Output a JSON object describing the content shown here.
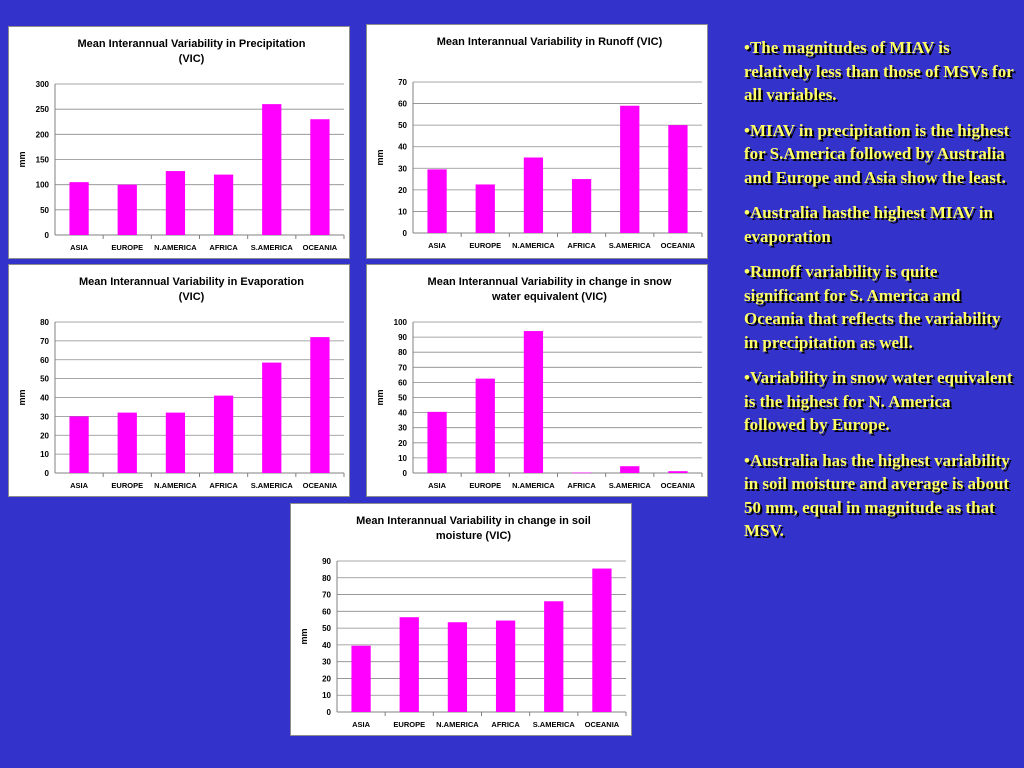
{
  "colors": {
    "background": "#3333cc",
    "bar": "#ff00ff",
    "bullet_text": "#ffff66"
  },
  "notes": [
    "•The magnitudes of MIAV is relatively less than those of MSVs for all variables.",
    "•MIAV in precipitation is the highest for S.America followed by Australia and Europe and Asia show the least.",
    "•Australia hasthe  highest MIAV in evaporation",
    "•Runoff variability is quite significant for S. America and Oceania that reflects the variability in precipitation as well.",
    "•Variability in snow water equivalent is the highest for N. America followed by Europe.",
    "•Australia has the highest variability in soil moisture and average is about 50 mm, equal in magnitude as that MSV."
  ],
  "chart_data": [
    {
      "type": "bar",
      "title_lines": [
        "Mean Interannual Variability in Precipitation",
        "(VIC)"
      ],
      "ylabel": "mm",
      "categories": [
        "ASIA",
        "EUROPE",
        "N.AMERICA",
        "AFRICA",
        "S.AMERICA",
        "OCEANIA"
      ],
      "values": [
        105,
        100,
        127,
        120,
        260,
        230
      ],
      "ylim": [
        0,
        300
      ],
      "yticks": [
        0,
        50,
        100,
        150,
        200,
        250,
        300
      ],
      "grid": true,
      "legend": false
    },
    {
      "type": "bar",
      "title_lines": [
        "Mean Interannual Variability in Runoff (VIC)"
      ],
      "ylabel": "mm",
      "categories": [
        "ASIA",
        "EUROPE",
        "N.AMERICA",
        "AFRICA",
        "S.AMERICA",
        "OCEANIA"
      ],
      "values": [
        29.5,
        22.5,
        35,
        25,
        59,
        50
      ],
      "ylim": [
        0,
        70
      ],
      "yticks": [
        0,
        10,
        20,
        30,
        40,
        50,
        60,
        70
      ],
      "grid": true,
      "legend": false
    },
    {
      "type": "bar",
      "title_lines": [
        "Mean Interannual Variability in Evaporation",
        "(VIC)"
      ],
      "ylabel": "mm",
      "categories": [
        "ASIA",
        "EUROPE",
        "N.AMERICA",
        "AFRICA",
        "S.AMERICA",
        "OCEANIA"
      ],
      "values": [
        30,
        32,
        32,
        41,
        58.5,
        72
      ],
      "ylim": [
        0,
        80
      ],
      "yticks": [
        0,
        10,
        20,
        30,
        40,
        50,
        60,
        70,
        80
      ],
      "grid": true,
      "legend": false
    },
    {
      "type": "bar",
      "title_lines": [
        "Mean Interannual Variability in change in snow",
        "water equivalent (VIC)"
      ],
      "ylabel": "mm",
      "categories": [
        "ASIA",
        "EUROPE",
        "N.AMERICA",
        "AFRICA",
        "S.AMERICA",
        "OCEANIA"
      ],
      "values": [
        40.5,
        62.5,
        94,
        0.3,
        4.5,
        1.2
      ],
      "ylim": [
        0,
        100
      ],
      "yticks": [
        0,
        10,
        20,
        30,
        40,
        50,
        60,
        70,
        80,
        90,
        100
      ],
      "grid": true,
      "legend": false
    },
    {
      "type": "bar",
      "title_lines": [
        "Mean Interannual Variability in change in soil",
        "moisture (VIC)"
      ],
      "ylabel": "mm",
      "categories": [
        "ASIA",
        "EUROPE",
        "N.AMERICA",
        "AFRICA",
        "S.AMERICA",
        "OCEANIA"
      ],
      "values": [
        39.5,
        56.5,
        53.5,
        54.5,
        66,
        85.5
      ],
      "ylim": [
        0,
        90
      ],
      "yticks": [
        0,
        10,
        20,
        30,
        40,
        50,
        60,
        70,
        80,
        90
      ],
      "grid": true,
      "legend": false
    }
  ]
}
